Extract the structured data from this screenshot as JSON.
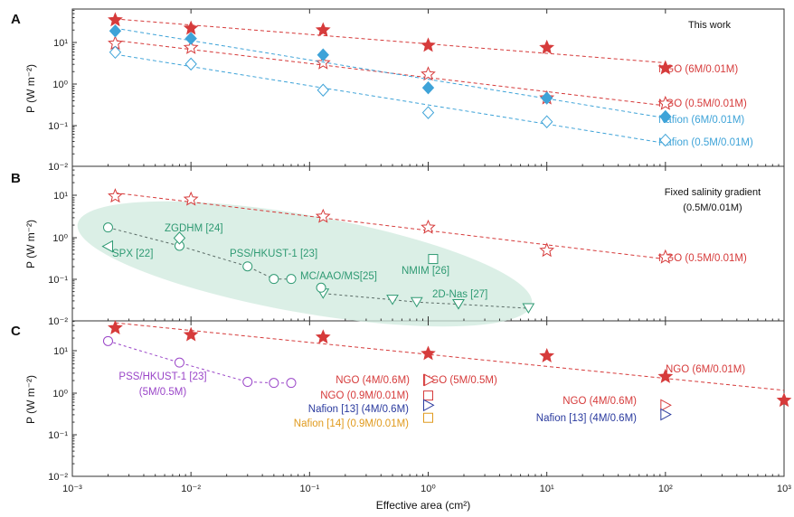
{
  "chart_data": {
    "type": "scatter",
    "xlabel": "Effective area (cm²)",
    "xscale": "log",
    "xlim": [
      0.001,
      1000
    ],
    "x_tick_labels": [
      "10⁻³",
      "10⁻²",
      "10⁻¹",
      "10⁰",
      "10¹",
      "10²",
      "10³"
    ],
    "y_tick_labels": [
      "10⁻²",
      "10⁻¹",
      "10⁰",
      "10¹"
    ],
    "colors": {
      "ngo": "#d63b3b",
      "nafion": "#3ea3d8",
      "lit": "#2f9a73",
      "pss": "#9a45c8",
      "navy": "#2a3a9e",
      "orange": "#e09a1d"
    },
    "panels": [
      {
        "letter": "A",
        "ylabel": "P (W m⁻²)",
        "yscale": "log",
        "ylim": [
          0.01,
          40
        ],
        "note": "This work",
        "series": [
          {
            "name": "NGO (6M/0.01M)",
            "marker": "star-filled",
            "color": "#d63b3b",
            "x": [
              0.0023,
              0.01,
              0.13,
              1,
              10,
              100
            ],
            "y": [
              35,
              22,
              20,
              8.5,
              7.5,
              2.4
            ]
          },
          {
            "name": "NGO (0.5M/0.01M)",
            "marker": "star-open",
            "color": "#d63b3b",
            "x": [
              0.0023,
              0.01,
              0.13,
              1,
              10,
              100
            ],
            "y": [
              9.5,
              7.5,
              3.2,
              1.7,
              0.45,
              0.33
            ]
          },
          {
            "name": "Nafion (6M/0.01M)",
            "marker": "diamond-filled",
            "color": "#3ea3d8",
            "x": [
              0.0023,
              0.01,
              0.13,
              1,
              10,
              100
            ],
            "y": [
              19,
              12.5,
              5,
              0.8,
              0.45,
              0.16
            ]
          },
          {
            "name": "Nafion (0.5M/0.01M)",
            "marker": "diamond-open",
            "color": "#3ea3d8",
            "x": [
              0.0023,
              0.01,
              0.13,
              1,
              10,
              100
            ],
            "y": [
              5.8,
              3,
              0.7,
              0.2,
              0.12,
              0.043
            ]
          }
        ]
      },
      {
        "letter": "B",
        "ylabel": "P (W m⁻²)",
        "yscale": "log",
        "ylim": [
          0.01,
          40
        ],
        "note": [
          "Fixed salinity gradient",
          "(0.5M/0.01M)"
        ],
        "series": [
          {
            "name": "NGO (0.5M/0.01M)",
            "marker": "star-open",
            "color": "#d63b3b",
            "x": [
              0.0023,
              0.01,
              0.13,
              1,
              10,
              100
            ],
            "y": [
              9.5,
              8,
              3.1,
              1.7,
              0.48,
              0.33
            ]
          },
          {
            "name": "ZGDHM [24]",
            "marker": "circle-open",
            "color": "#2f9a73",
            "x": [
              0.002,
              0.008,
              0.03,
              0.05,
              0.07
            ],
            "y": [
              1.7,
              0.62,
              0.2,
              0.1,
              0.1
            ]
          },
          {
            "name": "SPX [22]",
            "marker": "triangle-left-open",
            "color": "#2f9a73",
            "x": [
              0.002
            ],
            "y": [
              0.6
            ]
          },
          {
            "name": "PSS/HKUST-1 [23]",
            "marker": "diamond-open",
            "color": "#2f9a73",
            "x": [
              0.008
            ],
            "y": [
              0.95
            ]
          },
          {
            "name": "MC/AAO/MS[25]",
            "marker": "triangle-down-open",
            "color": "#2f9a73",
            "x": [
              0.13,
              0.5,
              0.8,
              1.8,
              7
            ],
            "y": [
              0.045,
              0.032,
              0.028,
              0.025,
              0.02
            ]
          },
          {
            "name": "MC/AAO/MS[25]-alt",
            "marker": "circle-open",
            "color": "#2f9a73",
            "x": [
              0.125
            ],
            "y": [
              0.062
            ]
          },
          {
            "name": "NMIM [26]",
            "marker": "square-open",
            "color": "#2f9a73",
            "x": [
              1.1
            ],
            "y": [
              0.3
            ]
          },
          {
            "name": "2D-Nas [27]",
            "marker": "triangle-down-open",
            "color": "#2f9a73",
            "x": [
              1.8
            ],
            "y": [
              0.025
            ]
          }
        ],
        "ellipse_label_group": [
          "ZGDHM [24]",
          "SPX [22]",
          "PSS/HKUST-1 [23]",
          "MC/AAO/MS[25]",
          "NMIM [26]",
          "2D-Nas [27]"
        ]
      },
      {
        "letter": "C",
        "ylabel": "P (W m⁻²)",
        "yscale": "log",
        "ylim": [
          0.01,
          40
        ],
        "series": [
          {
            "name": "NGO (6M/0.01M)",
            "marker": "star-filled",
            "color": "#d63b3b",
            "x": [
              0.0023,
              0.01,
              0.13,
              1,
              10,
              100,
              1000
            ],
            "y": [
              35,
              24,
              21,
              8.5,
              7.5,
              2.4,
              0.65
            ]
          },
          {
            "name": "PSS/HKUST-1 [23] (5M/0.5M)",
            "marker": "circle-open",
            "color": "#9a45c8",
            "x": [
              0.002,
              0.008,
              0.03,
              0.05,
              0.07
            ],
            "y": [
              17,
              5.2,
              1.8,
              1.7,
              1.7
            ]
          },
          {
            "name": "NGO (4M/0.6M)",
            "marker": "triangle-right-open",
            "color": "#d63b3b",
            "x": [
              1,
              100
            ],
            "y": [
              2,
              0.5
            ]
          },
          {
            "name": "NGO (5M/0.5M)",
            "marker": "triangle-right-open",
            "color": "#d63b3b",
            "x": [
              1.02
            ],
            "y": [
              2
            ]
          },
          {
            "name": "NGO (0.9M/0.01M)",
            "marker": "square-open",
            "color": "#d63b3b",
            "x": [
              1
            ],
            "y": [
              0.85
            ]
          },
          {
            "name": "Nafion [13] (4M/0.6M)",
            "marker": "triangle-right-open",
            "color": "#2a3a9e",
            "x": [
              1,
              100
            ],
            "y": [
              0.5,
              0.3
            ]
          },
          {
            "name": "Nafion [14] (0.9M/0.01M)",
            "marker": "square-open",
            "color": "#e09a1d",
            "x": [
              1
            ],
            "y": [
              0.25
            ]
          }
        ]
      }
    ],
    "labels": {
      "A": [
        {
          "text": "NGO (6M/0.01M)",
          "color": "#d63b3b"
        },
        {
          "text": "NGO (0.5M/0.01M)",
          "color": "#d63b3b"
        },
        {
          "text": "Nafion (6M/0.01M)",
          "color": "#3ea3d8"
        },
        {
          "text": "Nafion (0.5M/0.01M)",
          "color": "#3ea3d8"
        }
      ],
      "B": [
        {
          "text": "ZGDHM [24]",
          "color": "#2f9a73"
        },
        {
          "text": "SPX [22]",
          "color": "#2f9a73"
        },
        {
          "text": "PSS/HKUST-1 [23]",
          "color": "#2f9a73"
        },
        {
          "text": "NMIM [26]",
          "color": "#2f9a73"
        },
        {
          "text": "MC/AAO/MS[25]",
          "color": "#2f9a73"
        },
        {
          "text": "2D-Nas [27]",
          "color": "#2f9a73"
        },
        {
          "text": "NGO (0.5M/0.01M)",
          "color": "#d63b3b"
        }
      ],
      "C": [
        {
          "text": "PSS/HKUST-1 [23]",
          "color": "#9a45c8"
        },
        {
          "text": "(5M/0.5M)",
          "color": "#9a45c8"
        },
        {
          "text": "NGO (4M/0.6M)",
          "color": "#d63b3b"
        },
        {
          "text": "NGO (5M/0.5M)",
          "color": "#d63b3b"
        },
        {
          "text": "NGO (0.9M/0.01M)",
          "color": "#d63b3b"
        },
        {
          "text": "Nafion [13] (4M/0.6M)",
          "color": "#2a3a9e"
        },
        {
          "text": "Nafion [14] (0.9M/0.01M)",
          "color": "#e09a1d"
        },
        {
          "text": "NGO (6M/0.01M)",
          "color": "#d63b3b"
        },
        {
          "text": "NGO (4M/0.6M)",
          "color": "#d63b3b"
        },
        {
          "text": "Nafion [13] (4M/0.6M)",
          "color": "#2a3a9e"
        }
      ]
    }
  }
}
